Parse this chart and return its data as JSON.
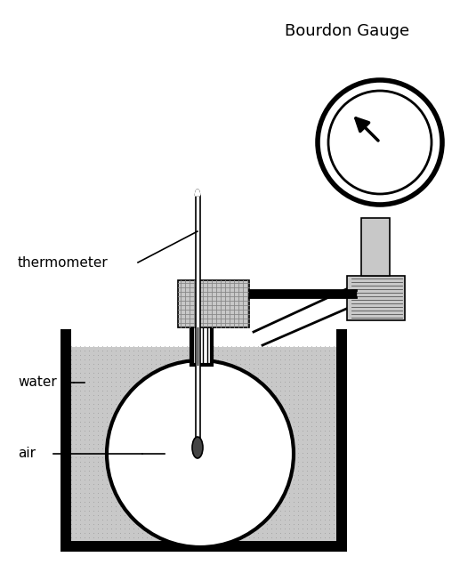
{
  "background_color": "#ffffff",
  "colors": {
    "black": "#000000",
    "dark_gray": "#444444",
    "light_gray": "#c8c8c8",
    "medium_gray": "#aaaaaa",
    "white": "#ffffff"
  },
  "labels": {
    "title": "Bourdon Gauge",
    "thermometer": "thermometer",
    "water": "water",
    "air": "air"
  },
  "fig_width": 5.17,
  "fig_height": 6.44,
  "dpi": 100
}
